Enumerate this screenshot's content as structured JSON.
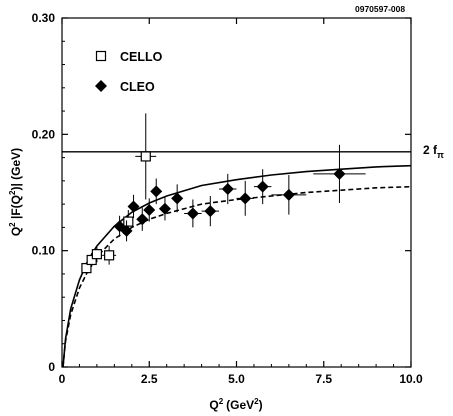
{
  "chart_data": {
    "type": "scatter",
    "id_label": "0970597-008",
    "xlabel_main": "Q",
    "xlabel_sup": "2",
    "xlabel_units_prefix": "(GeV",
    "xlabel_units_sup": "2",
    "xlabel_units_suffix": ")",
    "ylabel_text": "Q^2 |F(Q^2)| (GeV)",
    "xlim": [
      0,
      10
    ],
    "ylim": [
      0,
      0.3
    ],
    "x_ticks": [
      {
        "value": 0,
        "label": "0"
      },
      {
        "value": 2.5,
        "label": "2.5"
      },
      {
        "value": 5,
        "label": "5.0"
      },
      {
        "value": 7.5,
        "label": "7.5"
      },
      {
        "value": 10,
        "label": "10.0"
      }
    ],
    "y_ticks": [
      {
        "value": 0,
        "label": "0"
      },
      {
        "value": 0.1,
        "label": "0.10"
      },
      {
        "value": 0.2,
        "label": "0.20"
      },
      {
        "value": 0.3,
        "label": "0.30"
      }
    ],
    "reference_line": {
      "y": 0.185,
      "label_main": "2 f",
      "label_sub": "π"
    },
    "series": [
      {
        "name": "CELLO",
        "marker": "open-square",
        "points": [
          {
            "x": 0.7,
            "y": 0.085,
            "xerr": 0.1,
            "yerr": 0.005
          },
          {
            "x": 0.85,
            "y": 0.092,
            "xerr": 0.1,
            "yerr": 0.006
          },
          {
            "x": 1.0,
            "y": 0.097,
            "xerr": 0.1,
            "yerr": 0.007
          },
          {
            "x": 1.35,
            "y": 0.096,
            "xerr": 0.2,
            "yerr": 0.008
          },
          {
            "x": 1.9,
            "y": 0.125,
            "xerr": 0.1,
            "yerr": 0.01
          },
          {
            "x": 2.4,
            "y": 0.181,
            "xerr": 0.3,
            "yerr": 0.037
          }
        ]
      },
      {
        "name": "CLEO",
        "marker": "filled-diamond",
        "points": [
          {
            "x": 1.65,
            "y": 0.121,
            "xerr": 0.1,
            "yerr": 0.009
          },
          {
            "x": 1.85,
            "y": 0.117,
            "xerr": 0.1,
            "yerr": 0.009
          },
          {
            "x": 2.05,
            "y": 0.138,
            "xerr": 0.1,
            "yerr": 0.01
          },
          {
            "x": 2.3,
            "y": 0.127,
            "xerr": 0.1,
            "yerr": 0.01
          },
          {
            "x": 2.5,
            "y": 0.135,
            "xerr": 0.12,
            "yerr": 0.01
          },
          {
            "x": 2.7,
            "y": 0.151,
            "xerr": 0.12,
            "yerr": 0.011
          },
          {
            "x": 2.95,
            "y": 0.136,
            "xerr": 0.15,
            "yerr": 0.01
          },
          {
            "x": 3.3,
            "y": 0.145,
            "xerr": 0.15,
            "yerr": 0.012
          },
          {
            "x": 3.75,
            "y": 0.132,
            "xerr": 0.25,
            "yerr": 0.012
          },
          {
            "x": 4.25,
            "y": 0.134,
            "xerr": 0.25,
            "yerr": 0.013
          },
          {
            "x": 4.75,
            "y": 0.153,
            "xerr": 0.25,
            "yerr": 0.013
          },
          {
            "x": 5.25,
            "y": 0.145,
            "xerr": 0.25,
            "yerr": 0.015
          },
          {
            "x": 5.75,
            "y": 0.155,
            "xerr": 0.25,
            "yerr": 0.015
          },
          {
            "x": 6.5,
            "y": 0.148,
            "xerr": 0.5,
            "yerr": 0.017
          },
          {
            "x": 7.95,
            "y": 0.166,
            "xerr": 0.75,
            "yerr": 0.025
          }
        ]
      }
    ],
    "curves": [
      {
        "style": "solid",
        "points": [
          [
            0.03,
            0.0
          ],
          [
            0.1,
            0.024
          ],
          [
            0.25,
            0.05
          ],
          [
            0.5,
            0.075
          ],
          [
            0.75,
            0.092
          ],
          [
            1.0,
            0.104
          ],
          [
            1.5,
            0.121
          ],
          [
            2.0,
            0.133
          ],
          [
            2.5,
            0.141
          ],
          [
            3.0,
            0.147
          ],
          [
            4.0,
            0.156
          ],
          [
            5.0,
            0.161
          ],
          [
            6.0,
            0.165
          ],
          [
            7.0,
            0.168
          ],
          [
            8.0,
            0.17
          ],
          [
            9.0,
            0.172
          ],
          [
            10.0,
            0.173
          ]
        ]
      },
      {
        "style": "dashed",
        "points": [
          [
            0.03,
            0.0
          ],
          [
            0.1,
            0.022
          ],
          [
            0.25,
            0.045
          ],
          [
            0.5,
            0.068
          ],
          [
            0.75,
            0.083
          ],
          [
            1.0,
            0.095
          ],
          [
            1.5,
            0.11
          ],
          [
            2.0,
            0.12
          ],
          [
            2.5,
            0.127
          ],
          [
            3.0,
            0.132
          ],
          [
            4.0,
            0.14
          ],
          [
            5.0,
            0.144
          ],
          [
            6.0,
            0.147
          ],
          [
            7.0,
            0.15
          ],
          [
            8.0,
            0.152
          ],
          [
            9.0,
            0.154
          ],
          [
            10.0,
            0.155
          ]
        ]
      }
    ],
    "legend": {
      "placement": "top-left"
    }
  }
}
